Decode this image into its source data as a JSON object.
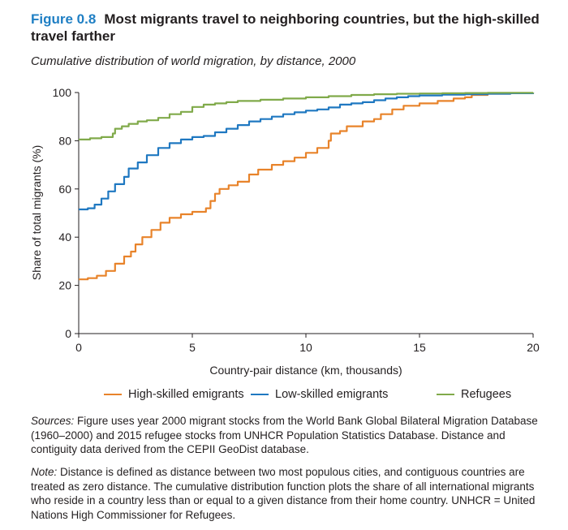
{
  "figure_label": "Figure 0.8",
  "title": "Most migrants travel to neighboring countries, but the high-skilled travel farther",
  "subtitle": "Cumulative distribution of world migration, by distance, 2000",
  "chart_data": {
    "type": "line",
    "xlabel": "Country-pair distance (km, thousands)",
    "ylabel": "Share of total migrants (%)",
    "xlim": [
      0,
      20
    ],
    "ylim": [
      0,
      100
    ],
    "x_ticks": [
      0,
      5,
      10,
      15,
      20
    ],
    "y_ticks": [
      0,
      20,
      40,
      60,
      80,
      100
    ],
    "legend_position": "bottom",
    "series": [
      {
        "name": "High-skilled emigrants",
        "color": "#e8832a",
        "points": [
          [
            0,
            22.5
          ],
          [
            0.4,
            23
          ],
          [
            0.8,
            24
          ],
          [
            1.2,
            26
          ],
          [
            1.6,
            29
          ],
          [
            2,
            32
          ],
          [
            2.3,
            34
          ],
          [
            2.5,
            37
          ],
          [
            2.8,
            40
          ],
          [
            3.2,
            43
          ],
          [
            3.6,
            46
          ],
          [
            4,
            48
          ],
          [
            4.5,
            49.5
          ],
          [
            5,
            50.5
          ],
          [
            5.6,
            52
          ],
          [
            5.8,
            55
          ],
          [
            6,
            58
          ],
          [
            6.2,
            60
          ],
          [
            6.6,
            61.5
          ],
          [
            7,
            63
          ],
          [
            7.5,
            66
          ],
          [
            7.9,
            68
          ],
          [
            8.5,
            70
          ],
          [
            9,
            71.5
          ],
          [
            9.5,
            73
          ],
          [
            10,
            75
          ],
          [
            10.5,
            77
          ],
          [
            11,
            80
          ],
          [
            11.1,
            83
          ],
          [
            11.5,
            84
          ],
          [
            11.8,
            86
          ],
          [
            12.5,
            88
          ],
          [
            13,
            89
          ],
          [
            13.3,
            91
          ],
          [
            13.8,
            93
          ],
          [
            14.3,
            94.5
          ],
          [
            15,
            95.5
          ],
          [
            15.8,
            96.5
          ],
          [
            16.5,
            97.5
          ],
          [
            17,
            98
          ],
          [
            17.3,
            99
          ],
          [
            18,
            99.5
          ],
          [
            19,
            99.7
          ],
          [
            20,
            100
          ]
        ]
      },
      {
        "name": "Low-skilled emigrants",
        "color": "#1f78c1",
        "points": [
          [
            0,
            51.5
          ],
          [
            0.4,
            52
          ],
          [
            0.7,
            53.5
          ],
          [
            1,
            56
          ],
          [
            1.3,
            59
          ],
          [
            1.6,
            62
          ],
          [
            2,
            65
          ],
          [
            2.2,
            68.5
          ],
          [
            2.6,
            71
          ],
          [
            3,
            74
          ],
          [
            3.5,
            77
          ],
          [
            4,
            79
          ],
          [
            4.5,
            80.5
          ],
          [
            5,
            81.5
          ],
          [
            5.5,
            82
          ],
          [
            6,
            83.5
          ],
          [
            6.5,
            85
          ],
          [
            7,
            86.5
          ],
          [
            7.5,
            88
          ],
          [
            8,
            89
          ],
          [
            8.5,
            90
          ],
          [
            9,
            91
          ],
          [
            9.5,
            91.8
          ],
          [
            10,
            92.5
          ],
          [
            10.5,
            93
          ],
          [
            11,
            93.8
          ],
          [
            11.5,
            95
          ],
          [
            12,
            95.5
          ],
          [
            12.5,
            96
          ],
          [
            13,
            96.8
          ],
          [
            13.5,
            97.5
          ],
          [
            14,
            98
          ],
          [
            14.5,
            98.5
          ],
          [
            15,
            98.8
          ],
          [
            16,
            99.1
          ],
          [
            17,
            99.3
          ],
          [
            18,
            99.5
          ],
          [
            19,
            99.7
          ],
          [
            20,
            100
          ]
        ]
      },
      {
        "name": "Refugees",
        "color": "#80aa4a",
        "points": [
          [
            0,
            80.5
          ],
          [
            0.5,
            81
          ],
          [
            1,
            81.5
          ],
          [
            1.5,
            83
          ],
          [
            1.6,
            85
          ],
          [
            1.9,
            86
          ],
          [
            2.2,
            87
          ],
          [
            2.6,
            88
          ],
          [
            3,
            88.5
          ],
          [
            3.5,
            89.5
          ],
          [
            4,
            91
          ],
          [
            4.5,
            92
          ],
          [
            5,
            94
          ],
          [
            5.5,
            95
          ],
          [
            6,
            95.5
          ],
          [
            6.5,
            96
          ],
          [
            7,
            96.5
          ],
          [
            8,
            97
          ],
          [
            9,
            97.5
          ],
          [
            10,
            98
          ],
          [
            11,
            98.5
          ],
          [
            12,
            99
          ],
          [
            13,
            99.3
          ],
          [
            14,
            99.5
          ],
          [
            15,
            99.6
          ],
          [
            16,
            99.7
          ],
          [
            17,
            99.8
          ],
          [
            18,
            99.9
          ],
          [
            20,
            100
          ]
        ]
      }
    ]
  },
  "sources": {
    "lead": "Sources:",
    "text": " Figure uses year 2000 migrant stocks from the World Bank Global Bilateral Migration Database (1960–2000) and 2015 refugee stocks from UNHCR Population Statistics Database. Distance and contiguity data derived from the CEPII GeoDist database."
  },
  "note": {
    "lead": "Note:",
    "text": " Distance is defined as distance between two most populous cities, and contiguous countries are treated as zero distance. The cumulative distribution function plots the share of all international migrants who reside in a country less than or equal to a given distance from their home country. UNHCR = United Nations High Commissioner for Refugees."
  }
}
